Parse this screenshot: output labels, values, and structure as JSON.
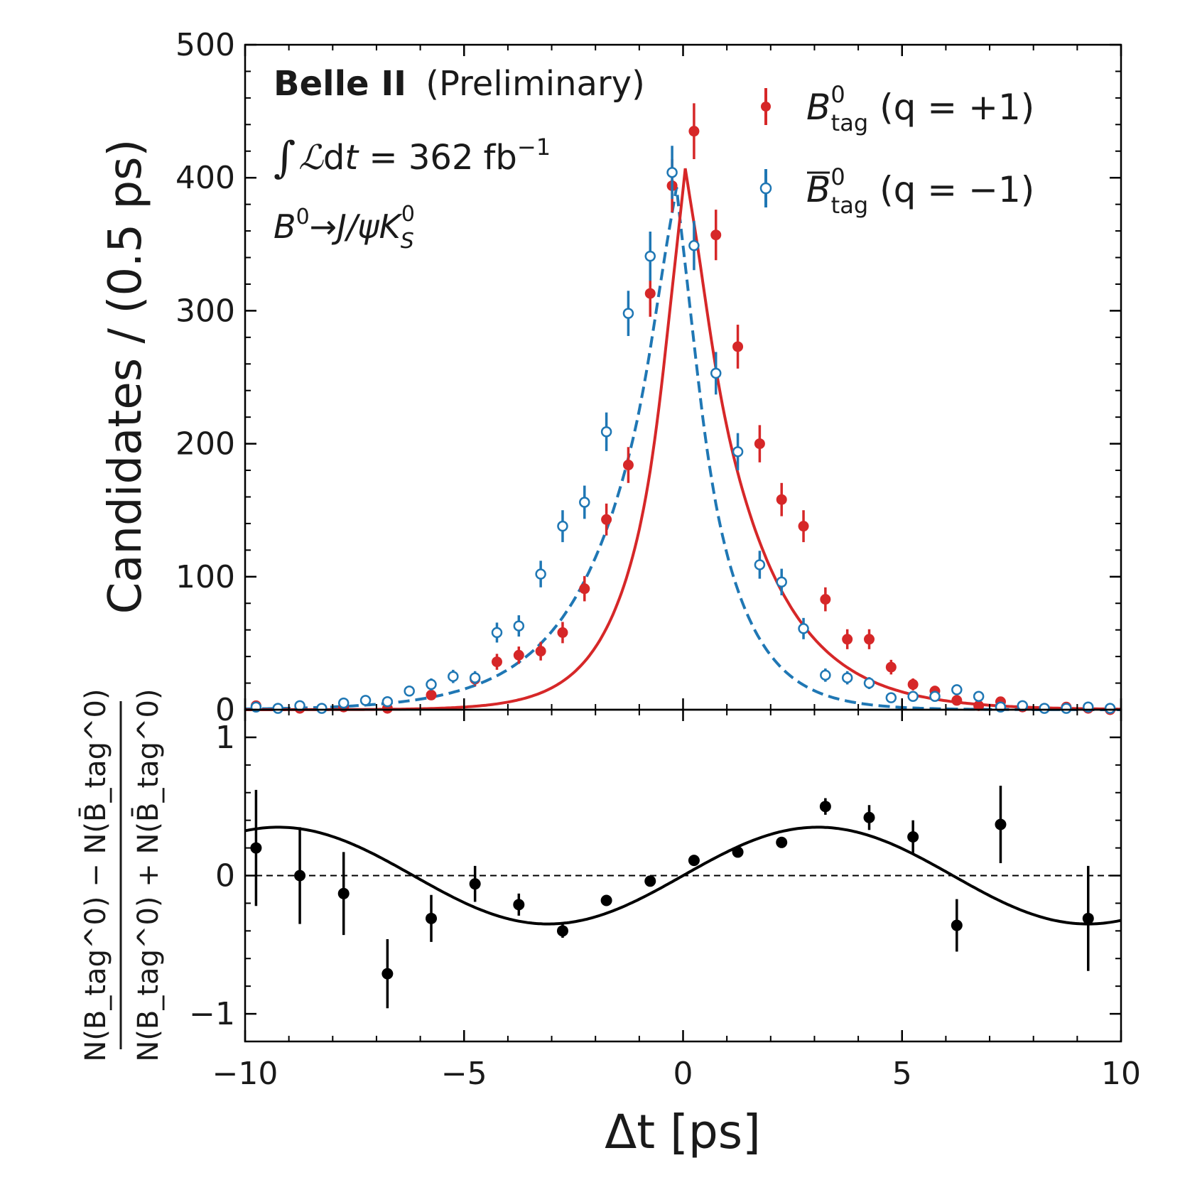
{
  "chart_data": [
    {
      "type": "scatter",
      "panel": "top",
      "ylabel": "Candidates / (0.5 ps)",
      "xlim": [
        -10,
        10
      ],
      "ylim": [
        0,
        500
      ],
      "yticks": [
        0,
        100,
        200,
        300,
        400,
        500
      ],
      "experiment": "Belle II",
      "status": "(Preliminary)",
      "lumi_value": "362",
      "lumi_unit": "fb",
      "lumi_exp": "−1",
      "decay_main": "B",
      "decay_mid": "→J/ψK",
      "decay_sub": "S",
      "decay_sup": "0",
      "legend": [
        {
          "name": "B_tag^0 (q = +1)",
          "base": "B",
          "sup": "0",
          "sub": "tag",
          "tail": "(q = +1)",
          "color": "#d62728",
          "marker": "filled"
        },
        {
          "name": "anti-B_tag^0 (q = −1)",
          "base": "B",
          "sup": "0",
          "sub": "tag",
          "tail": "(q = −1)",
          "color": "#1f77b4",
          "marker": "open",
          "bar": true
        }
      ],
      "series": [
        {
          "name": "B_tag^0 (q = +1)",
          "color": "#d62728",
          "x": [
            -9.75,
            -8.75,
            -7.75,
            -6.75,
            -5.75,
            -4.75,
            -4.25,
            -3.75,
            -3.25,
            -2.75,
            -2.25,
            -1.75,
            -1.25,
            -0.75,
            -0.25,
            0.25,
            0.75,
            1.25,
            1.75,
            2.25,
            2.75,
            3.25,
            3.75,
            4.25,
            4.75,
            5.25,
            5.75,
            6.25,
            6.75,
            7.25,
            7.75,
            8.25,
            8.75,
            9.25,
            9.75
          ],
          "y": [
            3,
            1,
            2,
            1,
            11,
            23,
            36,
            41,
            44,
            58,
            91,
            143,
            184,
            313,
            394,
            435,
            357,
            273,
            200,
            158,
            138,
            83,
            53,
            53,
            32,
            19,
            14,
            7,
            3,
            6,
            2,
            1,
            2,
            1,
            0
          ],
          "yerr": [
            2,
            1,
            1.5,
            1,
            3.5,
            5,
            6,
            6.5,
            7,
            8,
            9.5,
            12,
            13.5,
            17.5,
            20,
            21,
            19,
            16.5,
            14,
            12.5,
            12,
            9,
            7.5,
            7.5,
            5.5,
            4.5,
            4,
            2.5,
            2,
            2.5,
            1.5,
            1,
            1.5,
            1,
            0.5
          ]
        },
        {
          "name": "anti-B_tag^0 (q = −1)",
          "color": "#1f77b4",
          "x": [
            -9.75,
            -9.25,
            -8.75,
            -8.25,
            -7.75,
            -7.25,
            -6.75,
            -6.25,
            -5.75,
            -5.25,
            -4.75,
            -4.25,
            -3.75,
            -3.25,
            -2.75,
            -2.25,
            -1.75,
            -1.25,
            -0.75,
            -0.25,
            0.25,
            0.75,
            1.25,
            1.75,
            2.25,
            2.75,
            3.25,
            3.75,
            4.25,
            4.75,
            5.25,
            5.75,
            6.25,
            6.75,
            7.25,
            7.75,
            8.25,
            8.75,
            9.25,
            9.75
          ],
          "y": [
            2,
            1,
            3,
            1,
            5,
            7,
            6,
            14,
            19,
            25,
            24,
            58,
            63,
            102,
            138,
            156,
            209,
            298,
            341,
            404,
            349,
            253,
            194,
            109,
            96,
            61,
            26,
            24,
            20,
            9,
            10,
            10,
            15,
            10,
            2,
            3,
            1,
            1,
            2,
            1
          ],
          "yerr": [
            1.5,
            1,
            2,
            1,
            2.5,
            3,
            2.5,
            4,
            4.5,
            5,
            5,
            7.5,
            8,
            10,
            12,
            12.5,
            14.5,
            17,
            18.5,
            20,
            18.5,
            16,
            14,
            10.5,
            10,
            8,
            5,
            5,
            4.5,
            3,
            3,
            3,
            4,
            3,
            1.5,
            2,
            1,
            1,
            1.5,
            1
          ]
        }
      ],
      "fit_curves": [
        {
          "name": "B_tag^0 fit",
          "color": "#d62728",
          "style": "solid",
          "peak": 407,
          "center": 0.05,
          "tau_left": 0.95,
          "tau_right": 1.45
        },
        {
          "name": "anti-B_tag^0 fit",
          "color": "#1f77b4",
          "style": "dashed",
          "peak": 393,
          "center": -0.15,
          "tau_left": 1.5,
          "tau_right": 0.95
        }
      ]
    },
    {
      "type": "scatter",
      "panel": "bottom",
      "xlabel": "Δt [ps]",
      "ylabel": "N(B_tag^0) − N(anti-B_tag^0) / N(B_tag^0) + N(anti-B_tag^0)",
      "ylabel_num": "N(B_tag^0) − N(B̄_tag^0)",
      "ylabel_den": "N(B_tag^0) + N(B̄_tag^0)",
      "xlim": [
        -10,
        10
      ],
      "ylim": [
        -1.2,
        1.2
      ],
      "xticks": [
        -10,
        -5,
        0,
        5,
        10
      ],
      "xtick_labels": [
        "−10",
        "−5",
        "0",
        "5",
        "10"
      ],
      "yticks": [
        -1,
        0,
        1
      ],
      "ytick_labels": [
        "−1",
        "0",
        "1"
      ],
      "zero_line": "dashed",
      "series": [
        {
          "name": "asymmetry",
          "color": "#000000",
          "x": [
            -9.75,
            -8.75,
            -7.75,
            -6.75,
            -5.75,
            -4.75,
            -3.75,
            -2.75,
            -1.75,
            -0.75,
            0.25,
            1.25,
            2.25,
            3.25,
            4.25,
            5.25,
            6.25,
            7.25,
            9.25
          ],
          "y": [
            0.2,
            0.0,
            -0.13,
            -0.71,
            -0.31,
            -0.06,
            -0.21,
            -0.4,
            -0.18,
            -0.04,
            0.11,
            0.17,
            0.24,
            0.5,
            0.42,
            0.28,
            -0.36,
            0.37,
            -0.31
          ],
          "yerr": [
            0.42,
            0.35,
            0.3,
            0.25,
            0.17,
            0.13,
            0.08,
            0.05,
            0.03,
            0.03,
            0.02,
            0.02,
            0.04,
            0.06,
            0.09,
            0.12,
            0.19,
            0.28,
            0.38
          ]
        }
      ],
      "fit_curve": {
        "name": "asymmetry fit",
        "color": "#000000",
        "style": "solid",
        "amplitude": 0.35,
        "omega": 0.51
      }
    }
  ]
}
